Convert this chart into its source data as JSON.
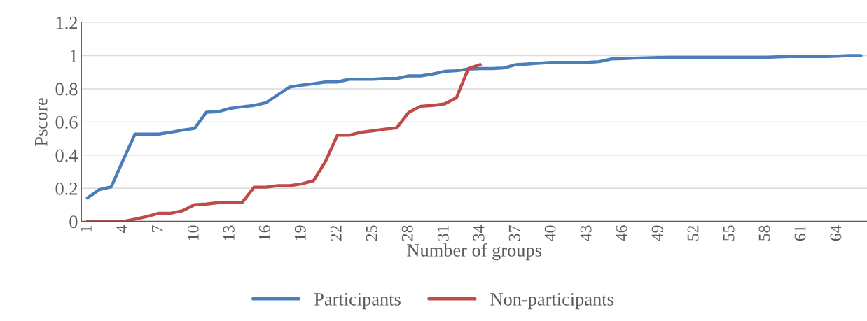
{
  "chart_data": {
    "type": "line",
    "xlabel": "Number of groups",
    "ylabel": "Pscore",
    "categories": [
      "1",
      null,
      null,
      "4",
      null,
      null,
      "7",
      null,
      null,
      "10",
      null,
      null,
      "13",
      null,
      null,
      "16",
      null,
      null,
      "19",
      null,
      null,
      "22",
      null,
      null,
      "25",
      null,
      null,
      "28",
      null,
      null,
      "31",
      null,
      null,
      "34",
      null,
      null,
      "37",
      null,
      null,
      "40",
      null,
      null,
      "43",
      null,
      null,
      "46",
      null,
      null,
      "49",
      null,
      null,
      "52",
      null,
      null,
      "55",
      null,
      null,
      "58",
      null,
      null,
      "61",
      null,
      null,
      "64",
      null,
      null
    ],
    "series": [
      {
        "name": "Participants",
        "color": "#4a7ebb",
        "values": [
          0.142,
          0.192,
          0.209,
          0.37,
          0.527,
          0.527,
          0.527,
          0.538,
          0.551,
          0.561,
          0.659,
          0.662,
          0.682,
          0.692,
          0.7,
          0.716,
          0.764,
          0.811,
          0.822,
          0.831,
          0.841,
          0.841,
          0.858,
          0.858,
          0.858,
          0.862,
          0.862,
          0.878,
          0.878,
          0.889,
          0.905,
          0.909,
          0.919,
          0.922,
          0.922,
          0.926,
          0.946,
          0.95,
          0.955,
          0.959,
          0.959,
          0.959,
          0.959,
          0.964,
          0.98,
          0.982,
          0.985,
          0.987,
          0.989,
          0.99,
          0.99,
          0.99,
          0.99,
          0.99,
          0.99,
          0.99,
          0.99,
          0.99,
          0.993,
          0.995,
          0.995,
          0.995,
          0.995,
          0.997,
          1.0,
          1.0
        ]
      },
      {
        "name": "Non-participants",
        "color": "#be4b48",
        "values": [
          0,
          0,
          0,
          0,
          0.014,
          0.03,
          0.05,
          0.05,
          0.065,
          0.101,
          0.105,
          0.114,
          0.114,
          0.114,
          0.207,
          0.207,
          0.216,
          0.216,
          0.227,
          0.246,
          0.362,
          0.52,
          0.52,
          0.538,
          0.547,
          0.557,
          0.565,
          0.658,
          0.695,
          0.7,
          0.709,
          0.746,
          0.922,
          0.946,
          null,
          null,
          null,
          null,
          null,
          null,
          null,
          null,
          null,
          null,
          null,
          null,
          null,
          null,
          null,
          null,
          null,
          null,
          null,
          null,
          null,
          null,
          null,
          null,
          null,
          null,
          null,
          null,
          null,
          null,
          null,
          null
        ]
      }
    ],
    "ylim": [
      0,
      1.2
    ],
    "yticks": [
      0,
      0.2,
      0.4,
      0.6,
      0.8,
      1,
      1.2
    ],
    "grid": "y",
    "legend": "bottom",
    "marker": "none",
    "line_style": "solid"
  }
}
